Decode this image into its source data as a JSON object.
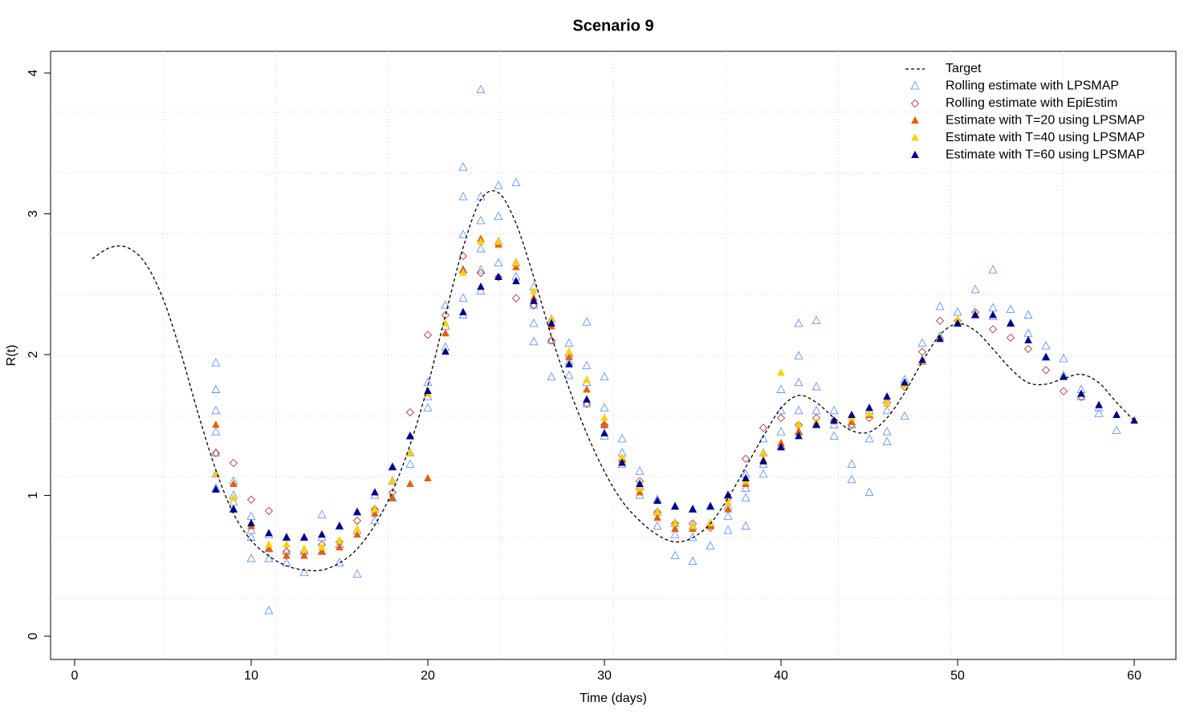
{
  "chart_data": {
    "type": "scatter",
    "title": "Scenario 9",
    "x_label": "Time (days)",
    "y_label": "R(t)",
    "xlim": [
      -1.36,
      62.36
    ],
    "ylim": [
      -0.165,
      4.154
    ],
    "xticks": [
      0,
      10,
      20,
      30,
      40,
      50,
      60
    ],
    "yticks": [
      0,
      1,
      2,
      3,
      4
    ],
    "grid_divisions": [
      10,
      10
    ],
    "legend": "topright",
    "series": [
      {
        "name": "Target",
        "color": "#000000",
        "marker": "dashed-line",
        "x": [
          1,
          2,
          3,
          4,
          5,
          6,
          7,
          8,
          9,
          10,
          11,
          12,
          13,
          14,
          15,
          16,
          17,
          18,
          19,
          20,
          21,
          22,
          23,
          24,
          25,
          26,
          27,
          28,
          29,
          30,
          31,
          32,
          33,
          34,
          35,
          36,
          37,
          38,
          39,
          40,
          41,
          42,
          43,
          44,
          45,
          46,
          47,
          48,
          49,
          50,
          51,
          52,
          53,
          54,
          55,
          56,
          57,
          58,
          59,
          60
        ],
        "values": [
          2.68,
          2.76,
          2.76,
          2.65,
          2.4,
          2.02,
          1.58,
          1.18,
          0.87,
          0.68,
          0.57,
          0.5,
          0.47,
          0.47,
          0.52,
          0.62,
          0.79,
          1.03,
          1.36,
          1.78,
          2.28,
          2.76,
          3.1,
          3.15,
          2.93,
          2.55,
          2.13,
          1.76,
          1.44,
          1.17,
          0.96,
          0.82,
          0.72,
          0.67,
          0.7,
          0.8,
          0.98,
          1.2,
          1.42,
          1.62,
          1.71,
          1.66,
          1.55,
          1.46,
          1.45,
          1.55,
          1.73,
          1.95,
          2.14,
          2.22,
          2.17,
          2.04,
          1.9,
          1.8,
          1.79,
          1.83,
          1.86,
          1.8,
          1.66,
          1.53
        ]
      },
      {
        "name": "Rolling estimate with LPSMAP",
        "color": "#6495ED",
        "marker": "open-triangle",
        "x": [
          8,
          8,
          8,
          8,
          8,
          8,
          8,
          9,
          9,
          9,
          9,
          10,
          10,
          10,
          10,
          11,
          11,
          11,
          11,
          12,
          12,
          12,
          13,
          13,
          13,
          14,
          14,
          14,
          15,
          15,
          15,
          16,
          16,
          16,
          17,
          17,
          17,
          18,
          18,
          18,
          19,
          19,
          19,
          20,
          20,
          20,
          21,
          21,
          21,
          22,
          22,
          22,
          22,
          22,
          22,
          23,
          23,
          23,
          23,
          23,
          23,
          24,
          24,
          24,
          24,
          25,
          25,
          25,
          26,
          26,
          26,
          26,
          27,
          27,
          27,
          28,
          28,
          28,
          29,
          29,
          29,
          29,
          30,
          30,
          30,
          30,
          31,
          31,
          31,
          32,
          32,
          32,
          33,
          33,
          33,
          34,
          34,
          34,
          34,
          35,
          35,
          35,
          35,
          36,
          36,
          36,
          37,
          37,
          37,
          37,
          38,
          38,
          38,
          38,
          39,
          39,
          39,
          39,
          40,
          40,
          40,
          40,
          41,
          41,
          41,
          41,
          41,
          42,
          42,
          42,
          42,
          43,
          43,
          43,
          44,
          44,
          44,
          45,
          45,
          45,
          46,
          46,
          46,
          47,
          47,
          48,
          48,
          49,
          49,
          50,
          50,
          51,
          51,
          52,
          52,
          52,
          53,
          53,
          54,
          54,
          55,
          55,
          56,
          56,
          57,
          57,
          58,
          58,
          59
        ],
        "values": [
          1.94,
          1.75,
          1.6,
          1.45,
          1.3,
          1.15,
          1.05,
          1.1,
          1.0,
          0.95,
          0.9,
          0.85,
          0.75,
          0.7,
          0.55,
          0.72,
          0.62,
          0.55,
          0.18,
          0.7,
          0.6,
          0.52,
          0.7,
          0.6,
          0.45,
          0.86,
          0.7,
          0.6,
          0.78,
          0.65,
          0.52,
          0.88,
          0.75,
          0.44,
          1.0,
          0.9,
          0.82,
          1.2,
          1.1,
          0.98,
          1.42,
          1.3,
          1.22,
          1.8,
          1.7,
          1.62,
          2.35,
          2.2,
          2.05,
          3.33,
          3.12,
          2.85,
          2.6,
          2.4,
          2.28,
          3.88,
          3.12,
          2.95,
          2.75,
          2.6,
          2.45,
          3.2,
          2.98,
          2.8,
          2.65,
          3.22,
          2.65,
          2.55,
          2.48,
          2.35,
          2.22,
          2.09,
          2.25,
          2.1,
          1.84,
          2.08,
          1.95,
          1.85,
          2.23,
          1.92,
          1.8,
          1.65,
          1.84,
          1.62,
          1.5,
          1.42,
          1.4,
          1.3,
          1.22,
          1.17,
          1.06,
          1.0,
          0.97,
          0.88,
          0.78,
          0.92,
          0.8,
          0.72,
          0.57,
          0.9,
          0.78,
          0.7,
          0.53,
          0.92,
          0.8,
          0.64,
          1.0,
          0.92,
          0.85,
          0.75,
          1.15,
          1.05,
          0.98,
          0.78,
          1.4,
          1.3,
          1.22,
          1.15,
          1.75,
          1.6,
          1.45,
          1.35,
          2.22,
          1.99,
          1.8,
          1.6,
          1.45,
          2.24,
          1.77,
          1.6,
          1.5,
          1.6,
          1.5,
          1.42,
          1.5,
          1.22,
          1.11,
          1.6,
          1.4,
          1.02,
          1.6,
          1.45,
          1.38,
          1.82,
          1.56,
          2.08,
          1.95,
          2.34,
          2.13,
          2.3,
          2.22,
          2.46,
          2.28,
          2.6,
          2.33,
          2.27,
          2.32,
          2.22,
          2.28,
          2.15,
          2.06,
          1.98,
          1.97,
          1.85,
          1.75,
          1.7,
          1.62,
          1.58,
          1.46
        ]
      },
      {
        "name": "Rolling estimate with EpiEstim",
        "color": "#B03A3A",
        "marker": "open-diamond",
        "x": [
          8,
          9,
          10,
          11,
          12,
          13,
          14,
          15,
          16,
          17,
          18,
          19,
          20,
          21,
          22,
          23,
          24,
          25,
          26,
          27,
          28,
          29,
          30,
          31,
          32,
          33,
          34,
          35,
          36,
          37,
          38,
          39,
          40,
          41,
          42,
          43,
          44,
          45,
          46,
          47,
          48,
          49,
          50,
          51,
          52,
          53,
          54,
          55,
          56,
          57
        ],
        "values": [
          1.3,
          1.23,
          0.97,
          0.89,
          0.6,
          0.6,
          0.65,
          0.67,
          0.82,
          0.9,
          1.02,
          1.59,
          2.14,
          2.28,
          2.7,
          2.58,
          2.55,
          2.4,
          2.35,
          2.1,
          1.99,
          1.65,
          1.5,
          1.25,
          1.1,
          0.88,
          0.8,
          0.8,
          0.77,
          0.98,
          1.26,
          1.48,
          1.55,
          1.5,
          1.55,
          1.53,
          1.5,
          1.55,
          1.66,
          1.77,
          2.02,
          2.24,
          2.24,
          2.3,
          2.18,
          2.12,
          2.04,
          1.89,
          1.74,
          1.7
        ]
      },
      {
        "name": "Estimate with T=20 using LPSMAP",
        "color": "#E66100",
        "marker": "filled-triangle",
        "x": [
          8,
          9,
          10,
          11,
          12,
          13,
          14,
          15,
          16,
          17,
          18,
          19,
          20,
          21,
          22,
          23,
          24,
          25,
          26,
          27,
          28,
          29,
          30,
          31,
          32,
          33,
          34,
          35,
          36,
          37,
          38,
          39,
          40,
          41,
          42,
          43,
          44,
          45,
          46,
          47,
          48
        ],
        "values": [
          1.5,
          1.08,
          0.78,
          0.62,
          0.57,
          0.57,
          0.6,
          0.63,
          0.72,
          0.87,
          0.98,
          1.08,
          1.12,
          2.15,
          2.6,
          2.82,
          2.78,
          2.62,
          2.4,
          2.2,
          1.98,
          1.75,
          1.5,
          1.25,
          1.02,
          0.84,
          0.76,
          0.76,
          0.78,
          0.9,
          1.08,
          1.25,
          1.37,
          1.45,
          1.5,
          1.53,
          1.52,
          1.57,
          1.65,
          1.78,
          1.95
        ]
      },
      {
        "name": "Estimate with T=40 using LPSMAP",
        "color": "#FFD000",
        "marker": "filled-triangle",
        "x": [
          8,
          9,
          10,
          11,
          12,
          13,
          14,
          15,
          16,
          17,
          18,
          19,
          20,
          21,
          22,
          23,
          24,
          25,
          26,
          27,
          28,
          29,
          30,
          31,
          32,
          33,
          34,
          35,
          36,
          37,
          38,
          39,
          40,
          41,
          42,
          43,
          44,
          45,
          46,
          47,
          48,
          49,
          50,
          51,
          52
        ],
        "values": [
          1.15,
          0.98,
          0.8,
          0.65,
          0.65,
          0.62,
          0.63,
          0.68,
          0.76,
          0.9,
          1.1,
          1.3,
          1.72,
          2.22,
          2.58,
          2.8,
          2.8,
          2.65,
          2.45,
          2.25,
          2.02,
          1.82,
          1.55,
          1.27,
          1.05,
          0.88,
          0.8,
          0.78,
          0.8,
          0.95,
          1.1,
          1.3,
          1.87,
          1.5,
          1.52,
          1.53,
          1.55,
          1.58,
          1.65,
          1.78,
          1.95,
          2.12,
          2.25,
          2.28,
          2.28
        ]
      },
      {
        "name": "Estimate with T=60 using LPSMAP",
        "color": "#00008B",
        "marker": "filled-triangle",
        "x": [
          8,
          9,
          10,
          11,
          12,
          13,
          14,
          15,
          16,
          17,
          18,
          19,
          20,
          21,
          22,
          23,
          24,
          25,
          26,
          27,
          28,
          29,
          30,
          31,
          32,
          33,
          34,
          35,
          36,
          37,
          38,
          39,
          40,
          41,
          42,
          43,
          44,
          45,
          46,
          47,
          48,
          49,
          50,
          51,
          52,
          53,
          54,
          55,
          56,
          57,
          58,
          59,
          60
        ],
        "values": [
          1.04,
          0.9,
          0.8,
          0.73,
          0.7,
          0.7,
          0.72,
          0.78,
          0.88,
          1.02,
          1.2,
          1.42,
          1.74,
          2.02,
          2.3,
          2.48,
          2.55,
          2.52,
          2.38,
          2.22,
          1.93,
          1.68,
          1.44,
          1.23,
          1.08,
          0.96,
          0.92,
          0.9,
          0.92,
          1.0,
          1.12,
          1.24,
          1.34,
          1.42,
          1.5,
          1.53,
          1.57,
          1.62,
          1.7,
          1.8,
          1.96,
          2.11,
          2.22,
          2.28,
          2.28,
          2.22,
          2.1,
          1.98,
          1.84,
          1.72,
          1.64,
          1.57,
          1.53
        ]
      }
    ]
  }
}
